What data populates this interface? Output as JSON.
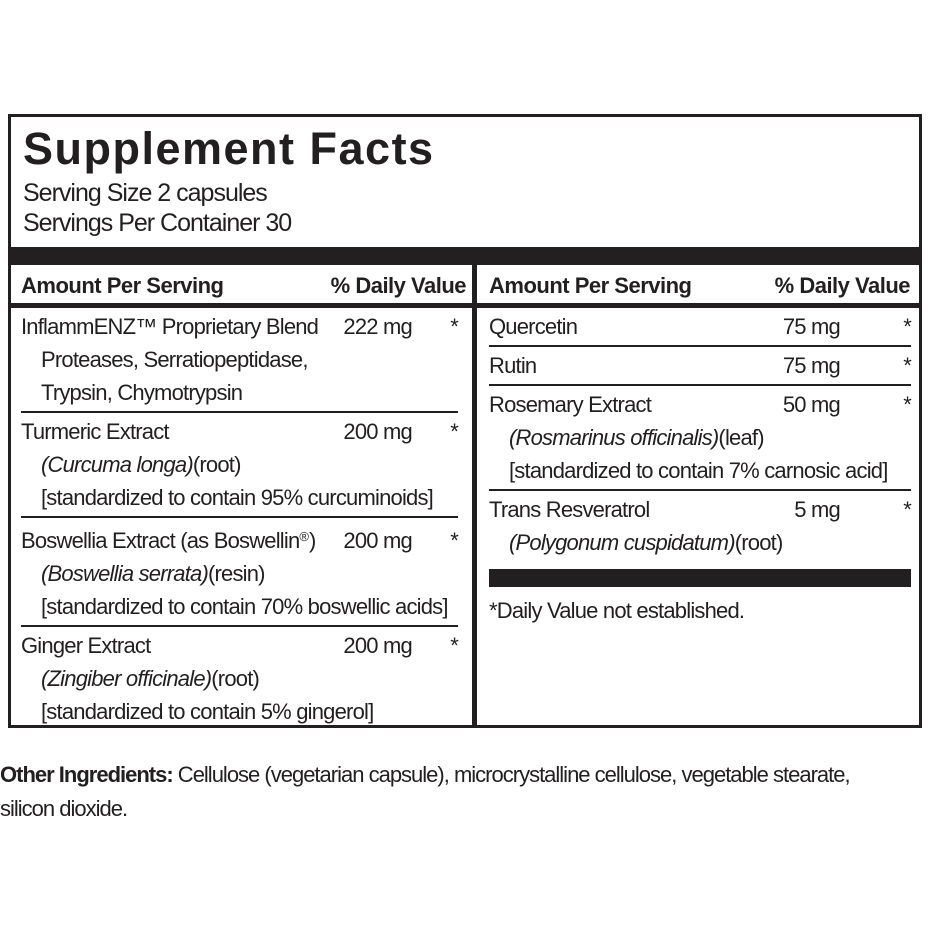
{
  "colors": {
    "ink": "#221f20",
    "background": "#ffffff"
  },
  "panel": {
    "title": "Supplement Facts",
    "serving_size": "Serving Size 2 capsules",
    "servings_per_container": "Servings Per Container 30",
    "column_header": {
      "amount": "Amount Per Serving",
      "daily_value": "% Daily Value"
    },
    "left": {
      "rows": [
        {
          "name": "InflammENZ™ Proprietary Blend",
          "amount": "222 mg",
          "daily_value": "*",
          "components_line1": "Proteases, Serratiopeptidase,",
          "components_line2": "Trypsin, Chymotrypsin"
        },
        {
          "name": "Turmeric Extract",
          "amount": "200 mg",
          "daily_value": "*",
          "botanical": "(Curcuma longa)",
          "plant_part": "(root)",
          "standardization": "[standardized to contain 95% curcuminoids]"
        },
        {
          "name_pre": "Boswellia Extract (as Boswellin",
          "registered_mark": "®",
          "name_post": ")",
          "amount": "200 mg",
          "daily_value": "*",
          "botanical": "(Boswellia serrata)",
          "plant_part": "(resin)",
          "standardization": "[standardized to contain 70% boswellic acids]"
        },
        {
          "name": "Ginger Extract",
          "amount": "200 mg",
          "daily_value": "*",
          "botanical": "(Zingiber officinale)",
          "plant_part": "(root)",
          "standardization": "[standardized to contain 5% gingerol]"
        }
      ]
    },
    "right": {
      "rows": [
        {
          "name": "Quercetin",
          "amount": "75 mg",
          "daily_value": "*"
        },
        {
          "name": "Rutin",
          "amount": "75 mg",
          "daily_value": "*"
        },
        {
          "name": "Rosemary Extract",
          "amount": "50 mg",
          "daily_value": "*",
          "botanical": "(Rosmarinus officinalis)",
          "plant_part": "(leaf)",
          "standardization": "[standardized to contain 7% carnosic acid]"
        },
        {
          "name": "Trans Resveratrol",
          "amount": "5 mg",
          "daily_value": "*",
          "botanical": "(Polygonum cuspidatum)",
          "plant_part": "(root)"
        }
      ],
      "footnote": "*Daily Value not established."
    }
  },
  "other_ingredients": {
    "label": "Other Ingredients:",
    "line1": " Cellulose (vegetarian capsule), microcrystalline cellulose, vegetable stearate,",
    "line2": "silicon dioxide."
  }
}
